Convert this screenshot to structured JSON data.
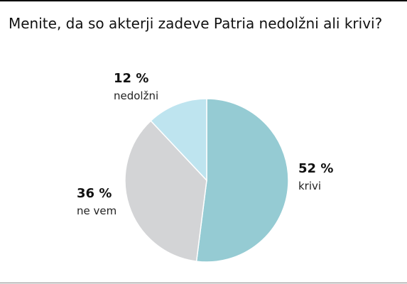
{
  "chart_data": {
    "type": "pie",
    "title": "Menite, da so akterji zadeve Patria nedolžni ali krivi?",
    "categories": [
      "krivi",
      "ne vem",
      "nedolžni"
    ],
    "values": [
      52,
      36,
      12
    ],
    "value_labels": [
      "52 %",
      "36 %",
      "12 %"
    ],
    "colors": [
      "#95cbd3",
      "#d3d4d6",
      "#bee4ef"
    ]
  }
}
